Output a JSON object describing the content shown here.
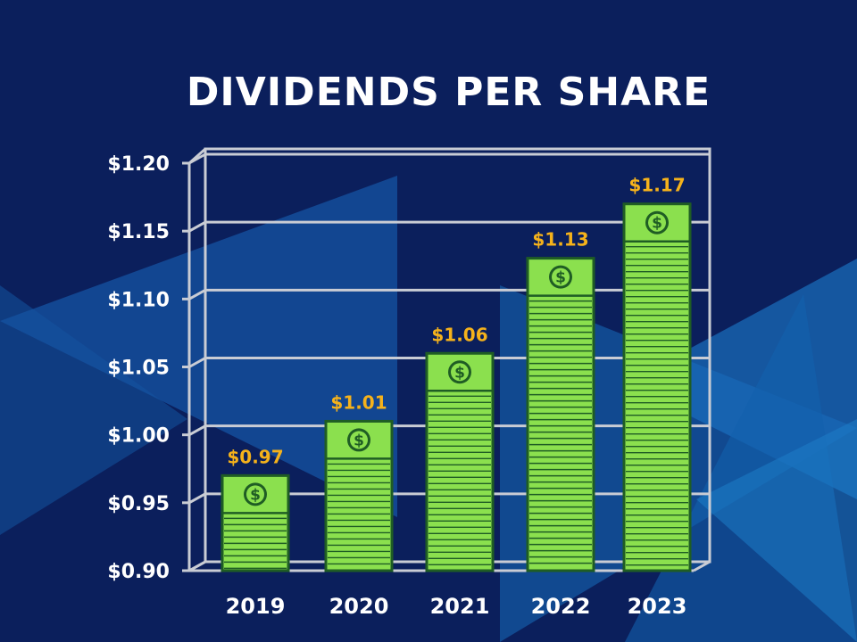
{
  "chart_data": {
    "type": "bar",
    "title": "DIVIDENDS PER SHARE",
    "xlabel": "",
    "ylabel": "",
    "categories": [
      "2019",
      "2020",
      "2021",
      "2022",
      "2023"
    ],
    "values": [
      0.97,
      1.01,
      1.06,
      1.13,
      1.17
    ],
    "value_labels": [
      "$0.97",
      "$1.01",
      "$1.06",
      "$1.13",
      "$1.17"
    ],
    "ylim": [
      0.9,
      1.2
    ],
    "yticks": [
      0.9,
      0.95,
      1.0,
      1.05,
      1.1,
      1.15,
      1.2
    ],
    "ytick_labels": [
      "$0.90",
      "$0.95",
      "$1.00",
      "$1.05",
      "$1.10",
      "$1.15",
      "$1.20"
    ],
    "grid": true,
    "legend": "none"
  },
  "colors": {
    "background": "#0b1f5c",
    "bar_fill": "#8be04e",
    "bar_outline": "#1f5d24",
    "value_label": "#f5b21b",
    "grid": "#c9ccd4",
    "text": "#ffffff"
  },
  "icons": {
    "bar_badge": "dollar-coin-icon"
  }
}
